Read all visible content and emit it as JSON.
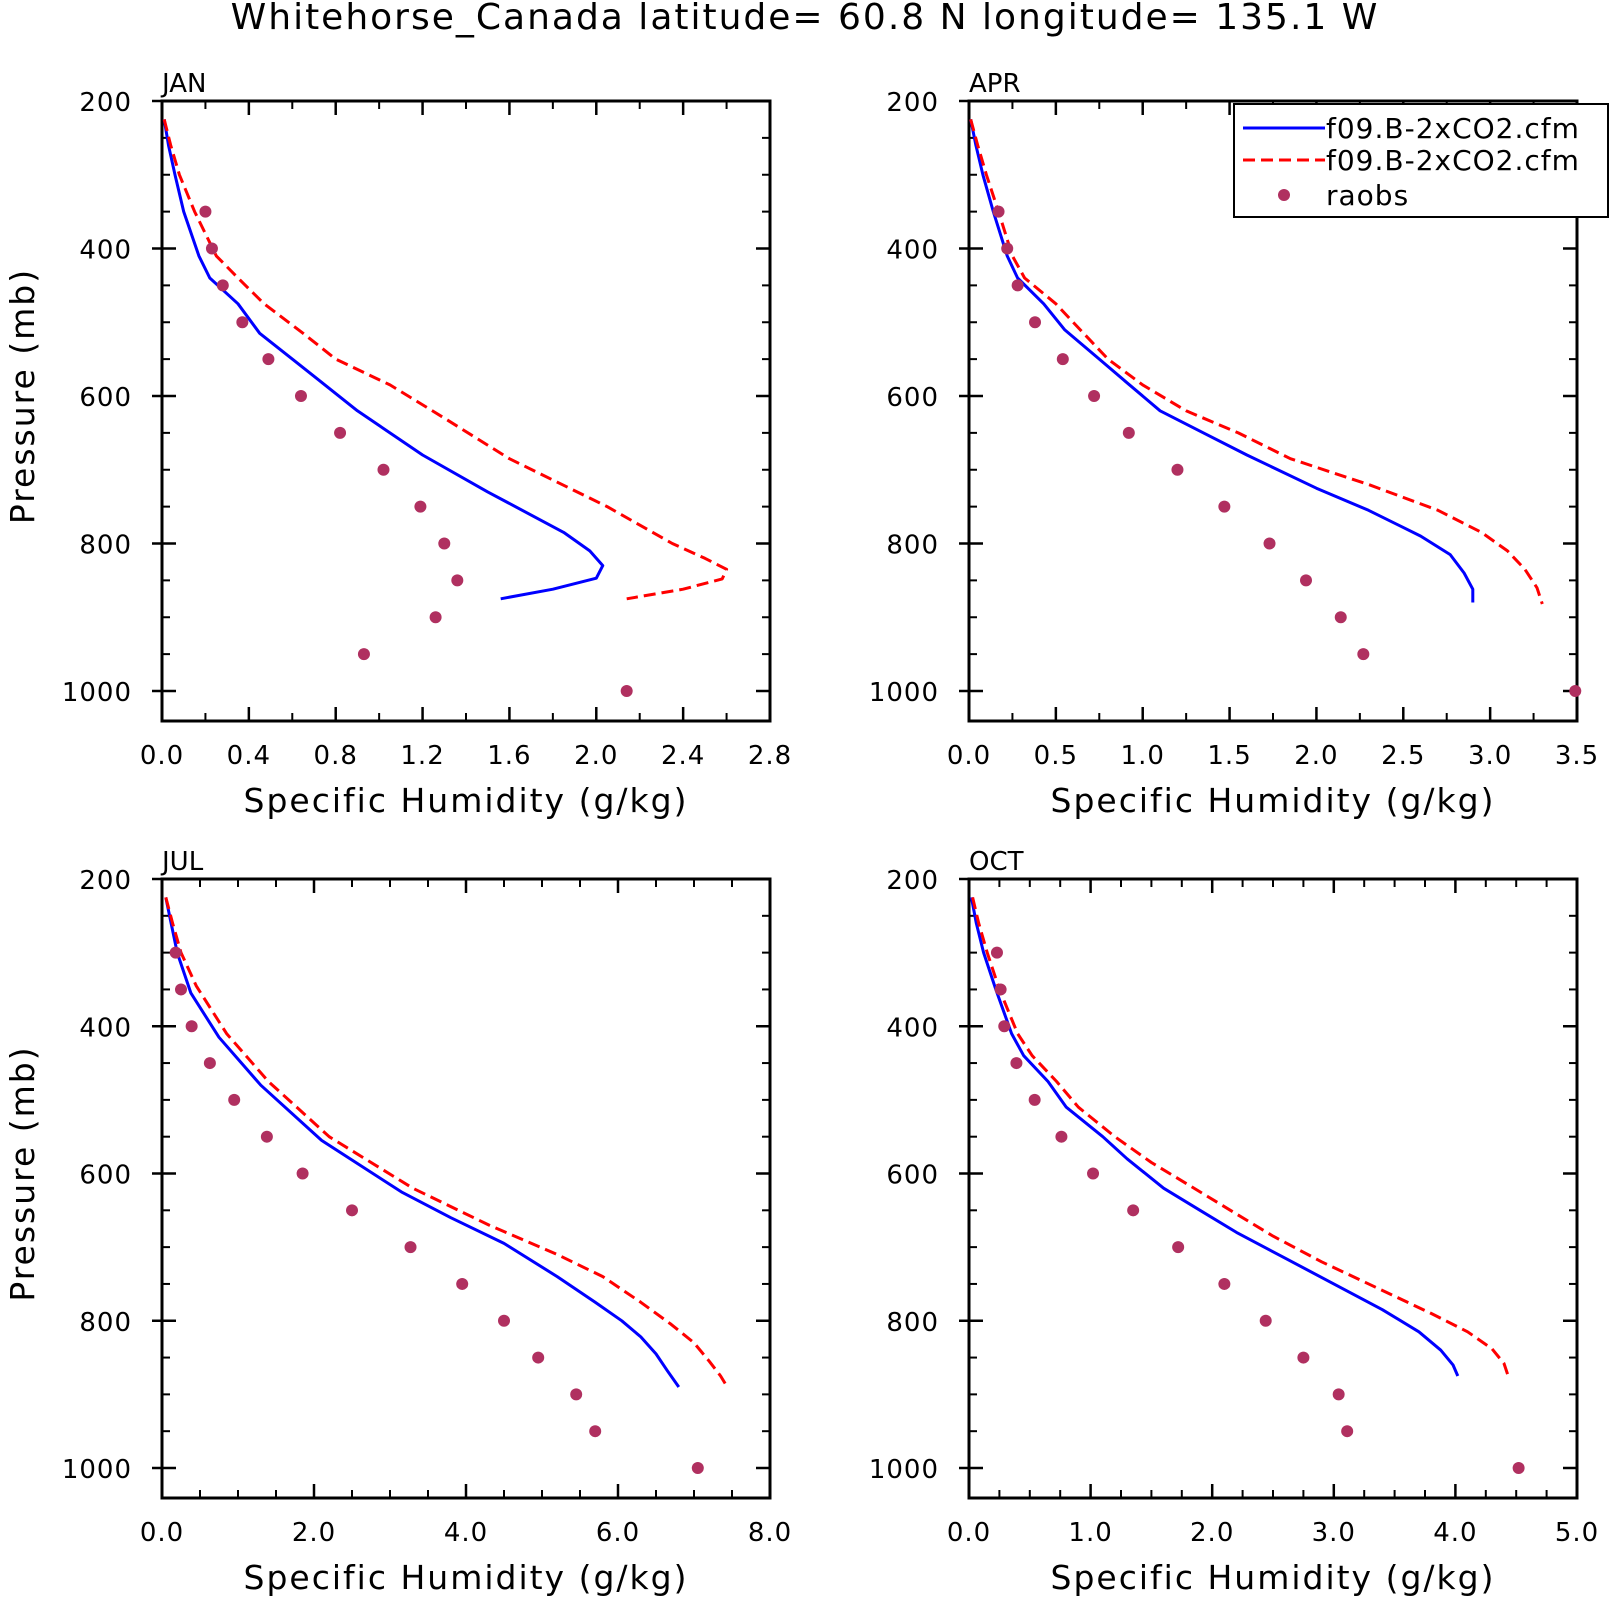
{
  "title": "Whitehorse_Canada  latitude= 60.8 N longitude= 135.1 W",
  "legend": {
    "entries": [
      {
        "label": "f09.B-2xCO2.cfm",
        "style": "solid",
        "color": "#0000ff"
      },
      {
        "label": "f09.B-2xCO2.cfm",
        "style": "dashed",
        "color": "#ff0000"
      },
      {
        "label": "raobs",
        "style": "marker",
        "color": "#b03060"
      }
    ]
  },
  "colors": {
    "model_solid": "#0000ff",
    "model_dashed": "#ff0000",
    "raobs": "#b03060"
  },
  "chart_data": [
    {
      "type": "line",
      "panel": "JAN",
      "xlabel": "Specific Humidity (g/kg)",
      "ylabel": "Pressure (mb)",
      "xlim": [
        0.0,
        2.8
      ],
      "ylim": [
        1000,
        200
      ],
      "xticks": [
        "0.0",
        "0.4",
        "0.8",
        "1.2",
        "1.6",
        "2.0",
        "2.4",
        "2.8"
      ],
      "xtick_values": [
        0.0,
        0.4,
        0.8,
        1.2,
        1.6,
        2.0,
        2.4,
        2.8
      ],
      "xminor": [
        0.2,
        0.6,
        1.0,
        1.4,
        1.8,
        2.2,
        2.6
      ],
      "yticks": [
        "200",
        "400",
        "600",
        "800",
        "1000"
      ],
      "ytick_values": [
        200,
        400,
        600,
        800,
        1000
      ],
      "series": [
        {
          "style": "solid",
          "color": "#0000ff",
          "points": [
            [
              0.01,
              225
            ],
            [
              0.03,
              260
            ],
            [
              0.06,
              300
            ],
            [
              0.1,
              350
            ],
            [
              0.17,
              410
            ],
            [
              0.22,
              440
            ],
            [
              0.35,
              475
            ],
            [
              0.45,
              515
            ],
            [
              0.6,
              550
            ],
            [
              0.75,
              585
            ],
            [
              0.9,
              620
            ],
            [
              1.2,
              680
            ],
            [
              1.5,
              730
            ],
            [
              1.85,
              785
            ],
            [
              1.97,
              810
            ],
            [
              2.03,
              830
            ],
            [
              2.0,
              847
            ],
            [
              1.8,
              862
            ],
            [
              1.56,
              875
            ]
          ]
        },
        {
          "style": "dashed",
          "color": "#ff0000",
          "points": [
            [
              0.01,
              225
            ],
            [
              0.04,
              260
            ],
            [
              0.08,
              300
            ],
            [
              0.15,
              350
            ],
            [
              0.25,
              410
            ],
            [
              0.35,
              440
            ],
            [
              0.47,
              475
            ],
            [
              0.65,
              515
            ],
            [
              0.8,
              550
            ],
            [
              1.05,
              585
            ],
            [
              1.3,
              630
            ],
            [
              1.6,
              685
            ],
            [
              2.05,
              750
            ],
            [
              2.35,
              800
            ],
            [
              2.5,
              820
            ],
            [
              2.6,
              835
            ],
            [
              2.58,
              848
            ],
            [
              2.4,
              862
            ],
            [
              2.14,
              875
            ]
          ]
        },
        {
          "style": "marker",
          "color": "#b03060",
          "points": [
            [
              0.2,
              350
            ],
            [
              0.23,
              400
            ],
            [
              0.28,
              450
            ],
            [
              0.37,
              500
            ],
            [
              0.49,
              550
            ],
            [
              0.64,
              600
            ],
            [
              0.82,
              650
            ],
            [
              1.02,
              700
            ],
            [
              1.19,
              750
            ],
            [
              1.3,
              800
            ],
            [
              1.36,
              850
            ],
            [
              1.26,
              900
            ],
            [
              0.93,
              950
            ],
            [
              2.14,
              1000
            ]
          ]
        }
      ]
    },
    {
      "type": "line",
      "panel": "APR",
      "xlabel": "Specific Humidity (g/kg)",
      "ylabel": "",
      "xlim": [
        0.0,
        3.5
      ],
      "ylim": [
        1000,
        200
      ],
      "xticks": [
        "0.0",
        "0.5",
        "1.0",
        "1.5",
        "2.0",
        "2.5",
        "3.0",
        "3.5"
      ],
      "xtick_values": [
        0.0,
        0.5,
        1.0,
        1.5,
        2.0,
        2.5,
        3.0,
        3.5
      ],
      "xminor": [
        0.25,
        0.75,
        1.25,
        1.75,
        2.25,
        2.75,
        3.25
      ],
      "yticks": [
        "200",
        "400",
        "600",
        "800",
        "1000"
      ],
      "ytick_values": [
        200,
        400,
        600,
        800,
        1000
      ],
      "series": [
        {
          "style": "solid",
          "color": "#0000ff",
          "points": [
            [
              0.01,
              225
            ],
            [
              0.04,
              260
            ],
            [
              0.08,
              300
            ],
            [
              0.14,
              350
            ],
            [
              0.22,
              410
            ],
            [
              0.28,
              440
            ],
            [
              0.43,
              475
            ],
            [
              0.55,
              510
            ],
            [
              0.75,
              550
            ],
            [
              0.9,
              580
            ],
            [
              1.1,
              620
            ],
            [
              1.35,
              650
            ],
            [
              1.6,
              680
            ],
            [
              2.0,
              725
            ],
            [
              2.3,
              755
            ],
            [
              2.6,
              790
            ],
            [
              2.77,
              815
            ],
            [
              2.85,
              840
            ],
            [
              2.9,
              862
            ],
            [
              2.9,
              880
            ]
          ]
        },
        {
          "style": "dashed",
          "color": "#ff0000",
          "points": [
            [
              0.01,
              225
            ],
            [
              0.05,
              260
            ],
            [
              0.1,
              300
            ],
            [
              0.17,
              350
            ],
            [
              0.25,
              410
            ],
            [
              0.32,
              440
            ],
            [
              0.5,
              475
            ],
            [
              0.6,
              500
            ],
            [
              0.8,
              550
            ],
            [
              1.0,
              585
            ],
            [
              1.25,
              620
            ],
            [
              1.55,
              650
            ],
            [
              1.85,
              685
            ],
            [
              2.3,
              720
            ],
            [
              2.7,
              755
            ],
            [
              2.95,
              785
            ],
            [
              3.1,
              810
            ],
            [
              3.2,
              835
            ],
            [
              3.27,
              860
            ],
            [
              3.3,
              882
            ]
          ]
        },
        {
          "style": "marker",
          "color": "#b03060",
          "points": [
            [
              0.17,
              350
            ],
            [
              0.22,
              400
            ],
            [
              0.28,
              450
            ],
            [
              0.38,
              500
            ],
            [
              0.54,
              550
            ],
            [
              0.72,
              600
            ],
            [
              0.92,
              650
            ],
            [
              1.2,
              700
            ],
            [
              1.47,
              750
            ],
            [
              1.73,
              800
            ],
            [
              1.94,
              850
            ],
            [
              2.14,
              900
            ],
            [
              2.27,
              950
            ],
            [
              3.49,
              1000
            ]
          ]
        }
      ]
    },
    {
      "type": "line",
      "panel": "JUL",
      "xlabel": "Specific Humidity (g/kg)",
      "ylabel": "Pressure (mb)",
      "xlim": [
        0.0,
        8.0
      ],
      "ylim": [
        1000,
        200
      ],
      "xticks": [
        "0.0",
        "2.0",
        "4.0",
        "6.0",
        "8.0"
      ],
      "xtick_values": [
        0.0,
        2.0,
        4.0,
        6.0,
        8.0
      ],
      "xminor": [
        0.5,
        1.0,
        1.5,
        2.5,
        3.0,
        3.5,
        4.5,
        5.0,
        5.5,
        6.5,
        7.0,
        7.5
      ],
      "yticks": [
        "200",
        "400",
        "600",
        "800",
        "1000"
      ],
      "ytick_values": [
        200,
        400,
        600,
        800,
        1000
      ],
      "series": [
        {
          "style": "solid",
          "color": "#0000ff",
          "points": [
            [
              0.05,
              225
            ],
            [
              0.12,
              260
            ],
            [
              0.2,
              300
            ],
            [
              0.38,
              355
            ],
            [
              0.75,
              415
            ],
            [
              1.3,
              480
            ],
            [
              2.1,
              555
            ],
            [
              3.15,
              625
            ],
            [
              3.8,
              660
            ],
            [
              4.5,
              695
            ],
            [
              5.2,
              740
            ],
            [
              5.7,
              775
            ],
            [
              6.05,
              800
            ],
            [
              6.3,
              822
            ],
            [
              6.5,
              845
            ],
            [
              6.65,
              868
            ],
            [
              6.8,
              890
            ]
          ]
        },
        {
          "style": "dashed",
          "color": "#ff0000",
          "points": [
            [
              0.05,
              225
            ],
            [
              0.14,
              260
            ],
            [
              0.25,
              300
            ],
            [
              0.45,
              345
            ],
            [
              0.85,
              410
            ],
            [
              1.4,
              475
            ],
            [
              2.2,
              550
            ],
            [
              3.3,
              620
            ],
            [
              4.3,
              670
            ],
            [
              5.2,
              710
            ],
            [
              5.8,
              740
            ],
            [
              6.3,
              775
            ],
            [
              6.7,
              805
            ],
            [
              7.0,
              830
            ],
            [
              7.2,
              855
            ],
            [
              7.35,
              875
            ],
            [
              7.45,
              892
            ]
          ]
        },
        {
          "style": "marker",
          "color": "#b03060",
          "points": [
            [
              0.18,
              300
            ],
            [
              0.25,
              350
            ],
            [
              0.39,
              400
            ],
            [
              0.63,
              450
            ],
            [
              0.95,
              500
            ],
            [
              1.38,
              550
            ],
            [
              1.85,
              600
            ],
            [
              2.5,
              650
            ],
            [
              3.27,
              700
            ],
            [
              3.95,
              750
            ],
            [
              4.5,
              800
            ],
            [
              4.95,
              850
            ],
            [
              5.45,
              900
            ],
            [
              5.7,
              950
            ],
            [
              7.05,
              1000
            ]
          ]
        }
      ]
    },
    {
      "type": "line",
      "panel": "OCT",
      "xlabel": "Specific Humidity (g/kg)",
      "ylabel": "",
      "xlim": [
        0.0,
        5.0
      ],
      "ylim": [
        1000,
        200
      ],
      "xticks": [
        "0.0",
        "1.0",
        "2.0",
        "3.0",
        "4.0",
        "5.0"
      ],
      "xtick_values": [
        0.0,
        1.0,
        2.0,
        3.0,
        4.0,
        5.0
      ],
      "xminor": [
        0.25,
        0.5,
        0.75,
        1.25,
        1.5,
        1.75,
        2.25,
        2.5,
        2.75,
        3.25,
        3.5,
        3.75,
        4.25,
        4.5,
        4.75
      ],
      "yticks": [
        "200",
        "400",
        "600",
        "800",
        "1000"
      ],
      "ytick_values": [
        200,
        400,
        600,
        800,
        1000
      ],
      "series": [
        {
          "style": "solid",
          "color": "#0000ff",
          "points": [
            [
              0.02,
              225
            ],
            [
              0.06,
              260
            ],
            [
              0.12,
              300
            ],
            [
              0.22,
              350
            ],
            [
              0.35,
              410
            ],
            [
              0.45,
              440
            ],
            [
              0.65,
              475
            ],
            [
              0.8,
              510
            ],
            [
              1.1,
              550
            ],
            [
              1.3,
              580
            ],
            [
              1.6,
              620
            ],
            [
              1.9,
              650
            ],
            [
              2.2,
              680
            ],
            [
              2.6,
              715
            ],
            [
              3.0,
              750
            ],
            [
              3.4,
              785
            ],
            [
              3.7,
              815
            ],
            [
              3.88,
              840
            ],
            [
              3.98,
              860
            ],
            [
              4.02,
              875
            ]
          ]
        },
        {
          "style": "dashed",
          "color": "#ff0000",
          "points": [
            [
              0.03,
              225
            ],
            [
              0.08,
              260
            ],
            [
              0.15,
              300
            ],
            [
              0.25,
              350
            ],
            [
              0.4,
              410
            ],
            [
              0.52,
              440
            ],
            [
              0.72,
              475
            ],
            [
              0.9,
              510
            ],
            [
              1.2,
              550
            ],
            [
              1.5,
              585
            ],
            [
              1.8,
              615
            ],
            [
              2.15,
              650
            ],
            [
              2.5,
              685
            ],
            [
              2.9,
              720
            ],
            [
              3.35,
              755
            ],
            [
              3.8,
              790
            ],
            [
              4.1,
              815
            ],
            [
              4.3,
              838
            ],
            [
              4.4,
              858
            ],
            [
              4.44,
              878
            ]
          ]
        },
        {
          "style": "marker",
          "color": "#b03060",
          "points": [
            [
              0.23,
              300
            ],
            [
              0.26,
              350
            ],
            [
              0.29,
              400
            ],
            [
              0.39,
              450
            ],
            [
              0.54,
              500
            ],
            [
              0.76,
              550
            ],
            [
              1.02,
              600
            ],
            [
              1.35,
              650
            ],
            [
              1.72,
              700
            ],
            [
              2.1,
              750
            ],
            [
              2.44,
              800
            ],
            [
              2.75,
              850
            ],
            [
              3.04,
              900
            ],
            [
              3.11,
              950
            ],
            [
              4.52,
              1000
            ]
          ]
        }
      ]
    }
  ]
}
